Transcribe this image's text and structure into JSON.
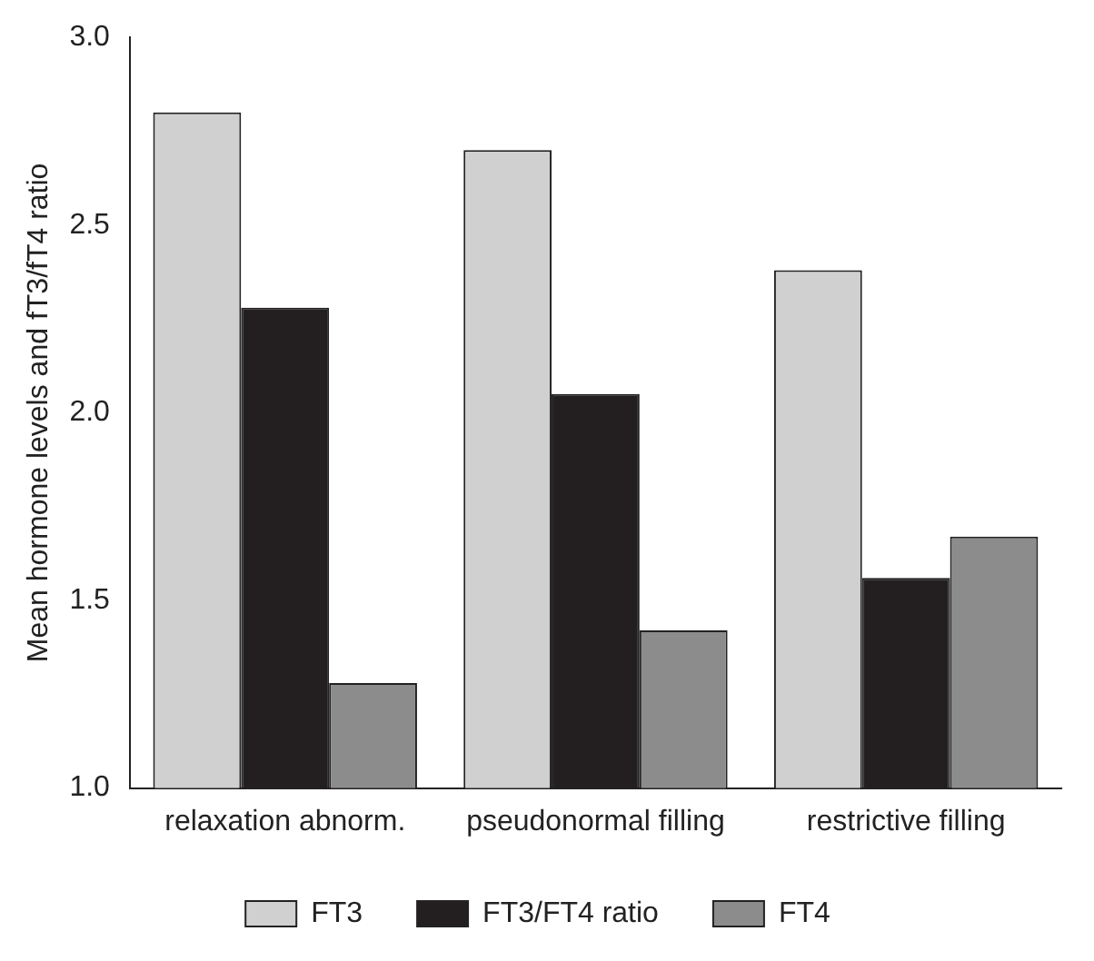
{
  "chart_data": {
    "type": "bar",
    "ylabel": "Mean hormone levels and fT3/fT4 ratio",
    "categories": [
      "relaxation abnorm.",
      "pseudonormal filling",
      "restrictive filling"
    ],
    "series": [
      {
        "name": "FT3",
        "color": "#d0d0d0",
        "values": [
          2.8,
          2.7,
          2.38
        ]
      },
      {
        "name": "FT3/FT4 ratio",
        "color": "#231f20",
        "values": [
          2.28,
          2.05,
          1.56
        ]
      },
      {
        "name": "FT4",
        "color": "#8c8c8c",
        "values": [
          1.28,
          1.42,
          1.67
        ]
      }
    ],
    "ylim": [
      1.0,
      3.0
    ],
    "yticks": [
      {
        "value": 1.0,
        "label": "1.0"
      },
      {
        "value": 1.5,
        "label": "1.5"
      },
      {
        "value": 2.0,
        "label": "2.0"
      },
      {
        "value": 2.5,
        "label": "2.5"
      },
      {
        "value": 3.0,
        "label": "3.0"
      }
    ],
    "grid": false,
    "legend": "bottom"
  }
}
